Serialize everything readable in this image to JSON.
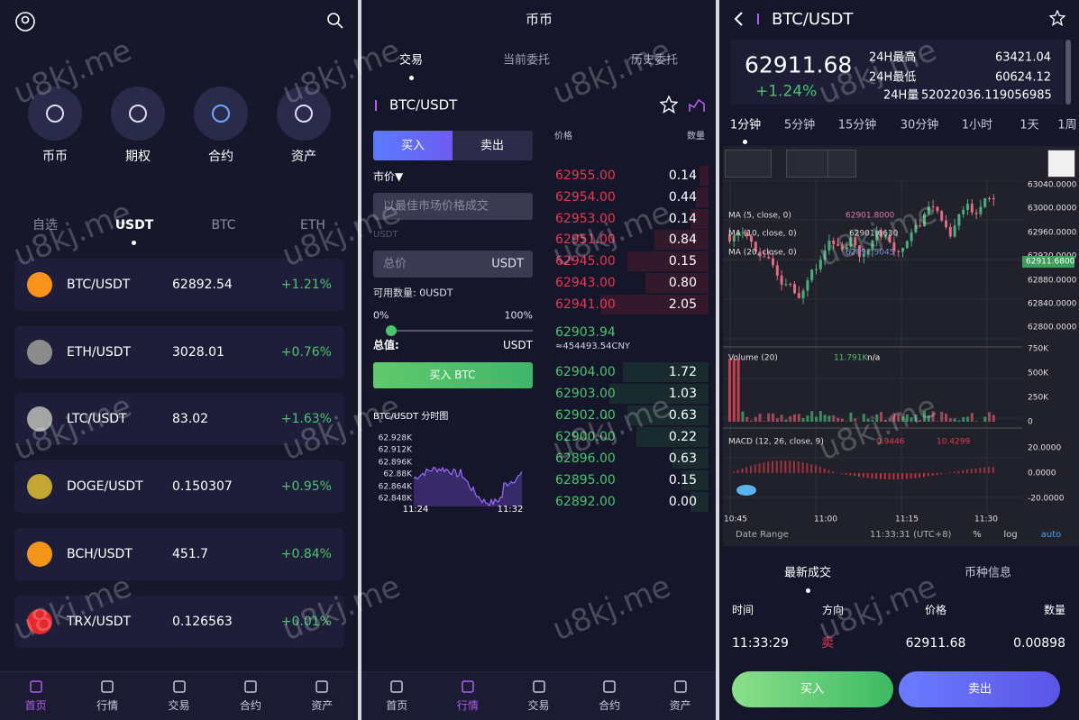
{
  "watermark": "u8kj.me",
  "nav": [
    "首页",
    "行情",
    "交易",
    "合约",
    "资产"
  ],
  "home": {
    "shortcuts": [
      "币币",
      "期权",
      "合约",
      "资产"
    ],
    "tabs": [
      "自选",
      "USDT",
      "BTC",
      "ETH"
    ],
    "markets": [
      {
        "pair": "BTC/USDT",
        "price": "62892.54",
        "change": "+1.21%"
      },
      {
        "pair": "ETH/USDT",
        "price": "3028.01",
        "change": "+0.76%"
      },
      {
        "pair": "LTC/USDT",
        "price": "83.02",
        "change": "+1.63%"
      },
      {
        "pair": "DOGE/USDT",
        "price": "0.150307",
        "change": "+0.95%"
      },
      {
        "pair": "BCH/USDT",
        "price": "451.7",
        "change": "+0.84%"
      },
      {
        "pair": "TRX/USDT",
        "price": "0.126563",
        "change": "+0.01%"
      }
    ]
  },
  "trade": {
    "title": "币币",
    "tabs": [
      "交易",
      "当前委托",
      "历史委托"
    ],
    "pair": "BTC/USDT",
    "buy_tab": "买入",
    "sell_tab": "卖出",
    "order_type": "市价▼",
    "price_placeholder": "以最佳市场价格成交",
    "unit_small": "USDT",
    "total_placeholder": "总价",
    "total_unit": "USDT",
    "available": "可用数量: 0USDT",
    "slider_min": "0%",
    "slider_max": "100%",
    "total_label": "总值:",
    "total_value_unit": "USDT",
    "buy_button": "买入 BTC",
    "mini_chart_title": "BTC/USDT 分时图",
    "mini_chart_yticks": [
      "62.928K",
      "62.912K",
      "62.896K",
      "62.88K",
      "62.864K",
      "62.848K"
    ],
    "mini_chart_xticks": [
      "11:24",
      "11:32"
    ],
    "book_headers": [
      "价格",
      "数量"
    ],
    "asks": [
      [
        "62955.00",
        "0.14"
      ],
      [
        "62954.00",
        "0.44"
      ],
      [
        "62953.00",
        "0.14"
      ],
      [
        "62951.00",
        "0.84"
      ],
      [
        "62945.00",
        "0.15"
      ],
      [
        "62943.00",
        "0.80"
      ],
      [
        "62941.00",
        "2.05"
      ]
    ],
    "last_price": "62903.94",
    "last_price_cny": "≈454493.54CNY",
    "bids": [
      [
        "62904.00",
        "1.72"
      ],
      [
        "62903.00",
        "1.03"
      ],
      [
        "62902.00",
        "0.63"
      ],
      [
        "62900.00",
        "0.22"
      ],
      [
        "62896.00",
        "0.63"
      ],
      [
        "62895.00",
        "0.15"
      ],
      [
        "62892.00",
        "0.00"
      ]
    ]
  },
  "detail": {
    "pair": "BTC/USDT",
    "price": "62911.68",
    "change": "+1.24%",
    "high_label": "24H最高",
    "high": "63421.04",
    "low_label": "24H最低",
    "low": "60624.12",
    "volume_label": "24H量",
    "volume": "52022036.119056985",
    "intervals": [
      "1分钟",
      "5分钟",
      "15分钟",
      "30分钟",
      "1小时",
      "1天",
      "1周"
    ],
    "ma": [
      {
        "label": "MA (5, close, 0)",
        "value": "62901.8000"
      },
      {
        "label": "MA (10, close, 0)",
        "value": "62901.6630"
      },
      {
        "label": "MA (20, close, 0)",
        "value": "62892.5045"
      }
    ],
    "price_axis": [
      "63040.0000",
      "63000.0000",
      "62960.0000",
      "62920.0000",
      "62880.0000",
      "62840.0000",
      "62800.0000"
    ],
    "current_tag": "62911.6800",
    "volume_label_chart": "Volume (20)",
    "volume_value": "11.791K",
    "volume_na": "n/a",
    "volume_axis": [
      "750K",
      "500K",
      "250K",
      "0"
    ],
    "macd_label": "MACD (12, 26, close, 9)",
    "macd_value1": "0.9446",
    "macd_value2": "10.4299",
    "macd_axis": [
      "20.0000",
      "0.0000",
      "-20.0000"
    ],
    "time_axis": [
      "10:45",
      "11:00",
      "11:15",
      "11:30"
    ],
    "date_range": "Date Range",
    "clock": "11:33:31 (UTC+8)",
    "opt_percent": "%",
    "opt_log": "log",
    "opt_auto": "auto",
    "tabs": [
      "最新成交",
      "币种信息"
    ],
    "trade_headers": [
      "时间",
      "方向",
      "价格",
      "数量"
    ],
    "trade_row": [
      "11:33:29",
      "卖",
      "62911.68",
      "0.00898"
    ],
    "buy": "买入",
    "sell": "卖出"
  }
}
